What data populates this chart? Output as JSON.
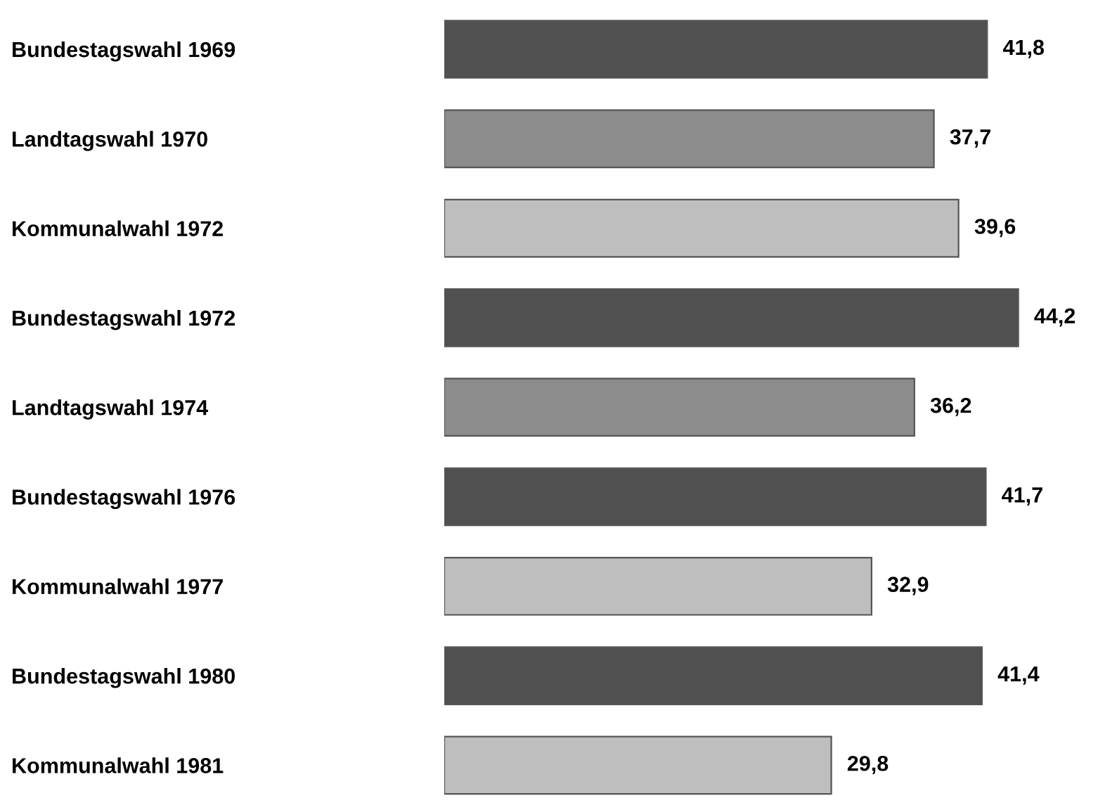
{
  "chart_data": {
    "type": "bar",
    "orientation": "horizontal",
    "categories": [
      "Bundestagswahl 1969",
      "Landtagswahl 1970",
      "Kommunalwahl 1972",
      "Bundestagswahl 1972",
      "Landtagswahl 1974",
      "Bundestagswahl 1976",
      "Kommunalwahl 1977",
      "Bundestagswahl 1980",
      "Kommunalwahl 1981"
    ],
    "values": [
      41.8,
      37.7,
      39.6,
      44.2,
      36.2,
      41.7,
      32.9,
      41.4,
      29.8
    ],
    "colors": [
      "#505050",
      "#8c8c8c",
      "#bebebe",
      "#505050",
      "#8c8c8c",
      "#505050",
      "#bebebe",
      "#505050",
      "#bebebe"
    ],
    "value_labels": [
      "41,8",
      "37,7",
      "39,6",
      "44,2",
      "36,2",
      "41,7",
      "32,9",
      "41,4",
      "29,8"
    ],
    "grid": false,
    "legend": false,
    "tick_labels": "y"
  }
}
